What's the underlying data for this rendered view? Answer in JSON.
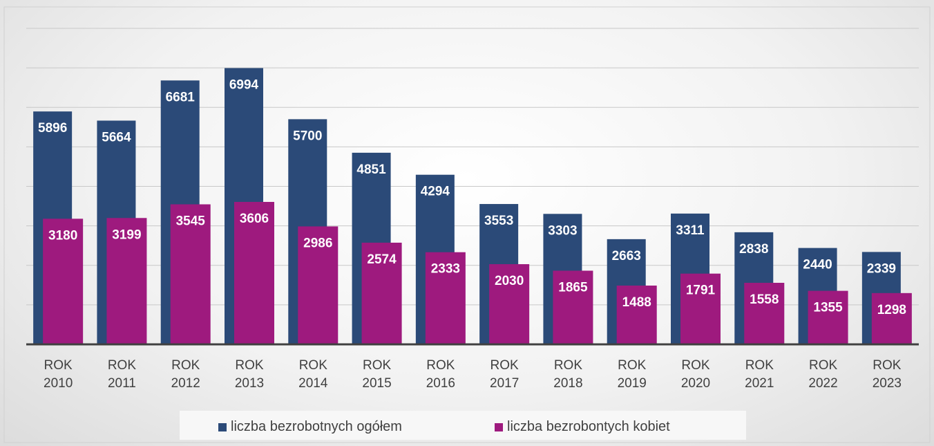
{
  "chart_data": {
    "type": "bar",
    "categories": [
      "ROK 2010",
      "ROK 2011",
      "ROK 2012",
      "ROK 2013",
      "ROK 2014",
      "ROK 2015",
      "ROK 2016",
      "ROK 2017",
      "ROK 2018",
      "ROK 2019",
      "ROK 2020",
      "ROK 2021",
      "ROK 2022",
      "ROK 2023"
    ],
    "series": [
      {
        "name": "liczba bezrobotnych ogółem",
        "color": "#2b4a78",
        "values": [
          5896,
          5664,
          6681,
          6994,
          5700,
          4851,
          4294,
          3553,
          3303,
          2663,
          3311,
          2838,
          2440,
          2339
        ]
      },
      {
        "name": "liczba bezrobontych kobiet",
        "color": "#9e1a7e",
        "values": [
          3180,
          3199,
          3545,
          3606,
          2986,
          2574,
          2333,
          2030,
          1865,
          1488,
          1791,
          1558,
          1355,
          1298
        ]
      }
    ],
    "ylim": [
      0,
      8000
    ],
    "yticks": [
      0,
      1000,
      2000,
      3000,
      4000,
      5000,
      6000,
      7000,
      8000
    ],
    "grid": true
  }
}
